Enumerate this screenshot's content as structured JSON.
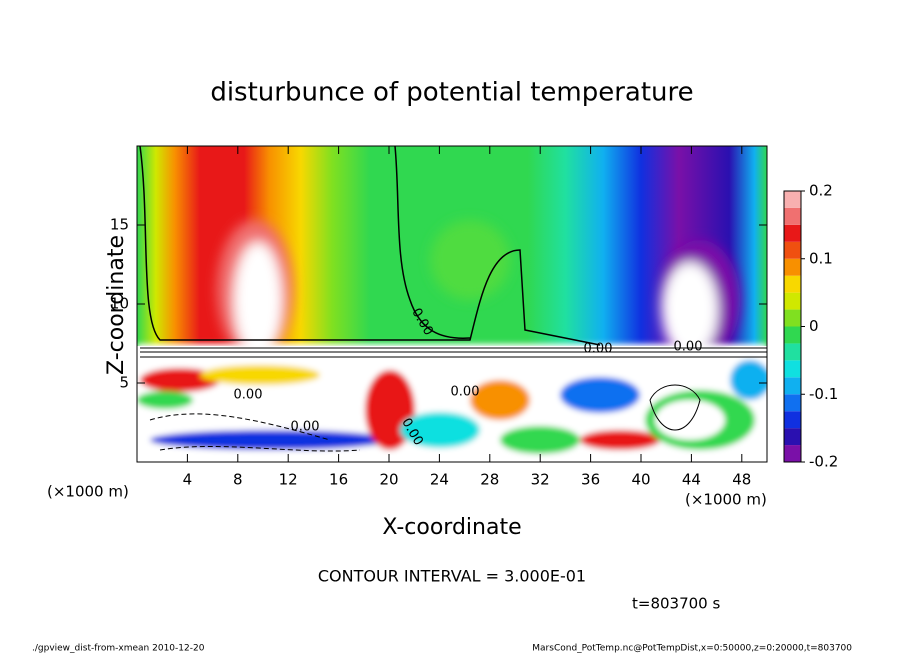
{
  "chart_data": {
    "type": "contour",
    "title": "disturbunce of potential temperature",
    "x_label": "X-coordinate",
    "y_label": "Z-coordinate",
    "x_unit": "(×1000 m)",
    "y_unit": "(×1000 m)",
    "xlim": [
      0,
      50
    ],
    "xticks": [
      4,
      8,
      12,
      16,
      20,
      24,
      28,
      32,
      36,
      40,
      44,
      48
    ],
    "ylim": [
      0,
      20
    ],
    "yticks": [
      5,
      10,
      15
    ],
    "colorbar_lim": [
      -0.2,
      0.2
    ],
    "colorbar_ticks": [
      -0.2,
      -0.1,
      0,
      0.1,
      0.2
    ],
    "colors": [
      "#7a10a8",
      "#2a10b0",
      "#1030e0",
      "#1070f0",
      "#10b0f0",
      "#10e0e0",
      "#20e0a0",
      "#30d850",
      "#80e020",
      "#d0e800",
      "#f8d800",
      "#f89000",
      "#f05010",
      "#e81818",
      "#f07070",
      "#f8b0b0"
    ],
    "annotations": [
      "0.00",
      "0.00",
      "0.00",
      "0.00",
      "0.00",
      "0.00",
      "0.00"
    ],
    "contour_interval": "CONTOUR INTERVAL = 3.000E-01",
    "time": "t=803700 s",
    "footer_left": "./gpview_dist-from-xmean  2010-12-20",
    "footer_right": "MarsCond_PotTemp.nc@PotTempDist,x=0:50000,z=0:20000,t=803700"
  }
}
